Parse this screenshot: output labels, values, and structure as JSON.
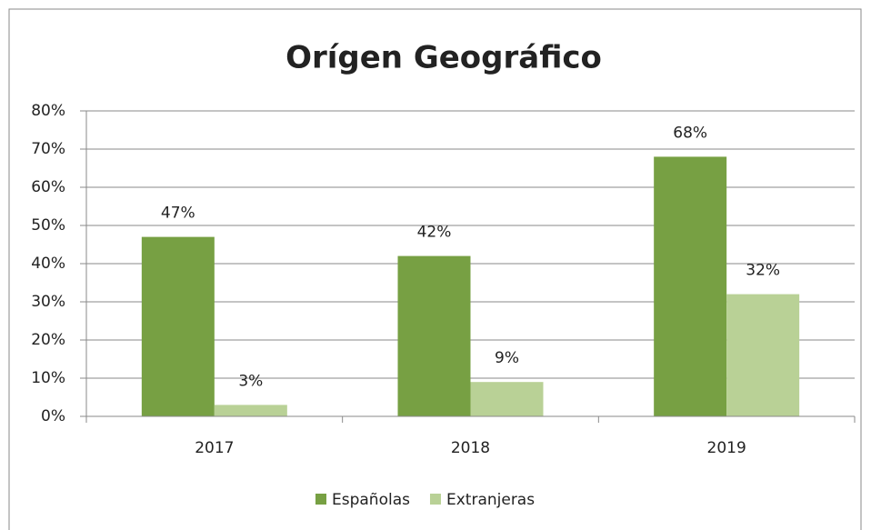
{
  "chart_data": {
    "type": "bar",
    "title": "Orígen Geográfico",
    "categories": [
      "2017",
      "2018",
      "2019"
    ],
    "series": [
      {
        "name": "Españolas",
        "color": "#77a043",
        "values": [
          47,
          42,
          68
        ],
        "value_labels": [
          "47%",
          "42%",
          "68%"
        ]
      },
      {
        "name": "Extranjeras",
        "color": "#b9d196",
        "values": [
          3,
          9,
          32
        ],
        "value_labels": [
          "3%",
          "9%",
          "32%"
        ]
      }
    ],
    "ylim": [
      0,
      80
    ],
    "yticks": [
      {
        "value": 0,
        "label": "0%"
      },
      {
        "value": 10,
        "label": "10%"
      },
      {
        "value": 20,
        "label": "20%"
      },
      {
        "value": 30,
        "label": "30%"
      },
      {
        "value": 40,
        "label": "40%"
      },
      {
        "value": 50,
        "label": "50%"
      },
      {
        "value": 60,
        "label": "60%"
      },
      {
        "value": 70,
        "label": "70%"
      },
      {
        "value": 80,
        "label": "80%"
      }
    ],
    "grid": true,
    "legend": "bottom"
  }
}
